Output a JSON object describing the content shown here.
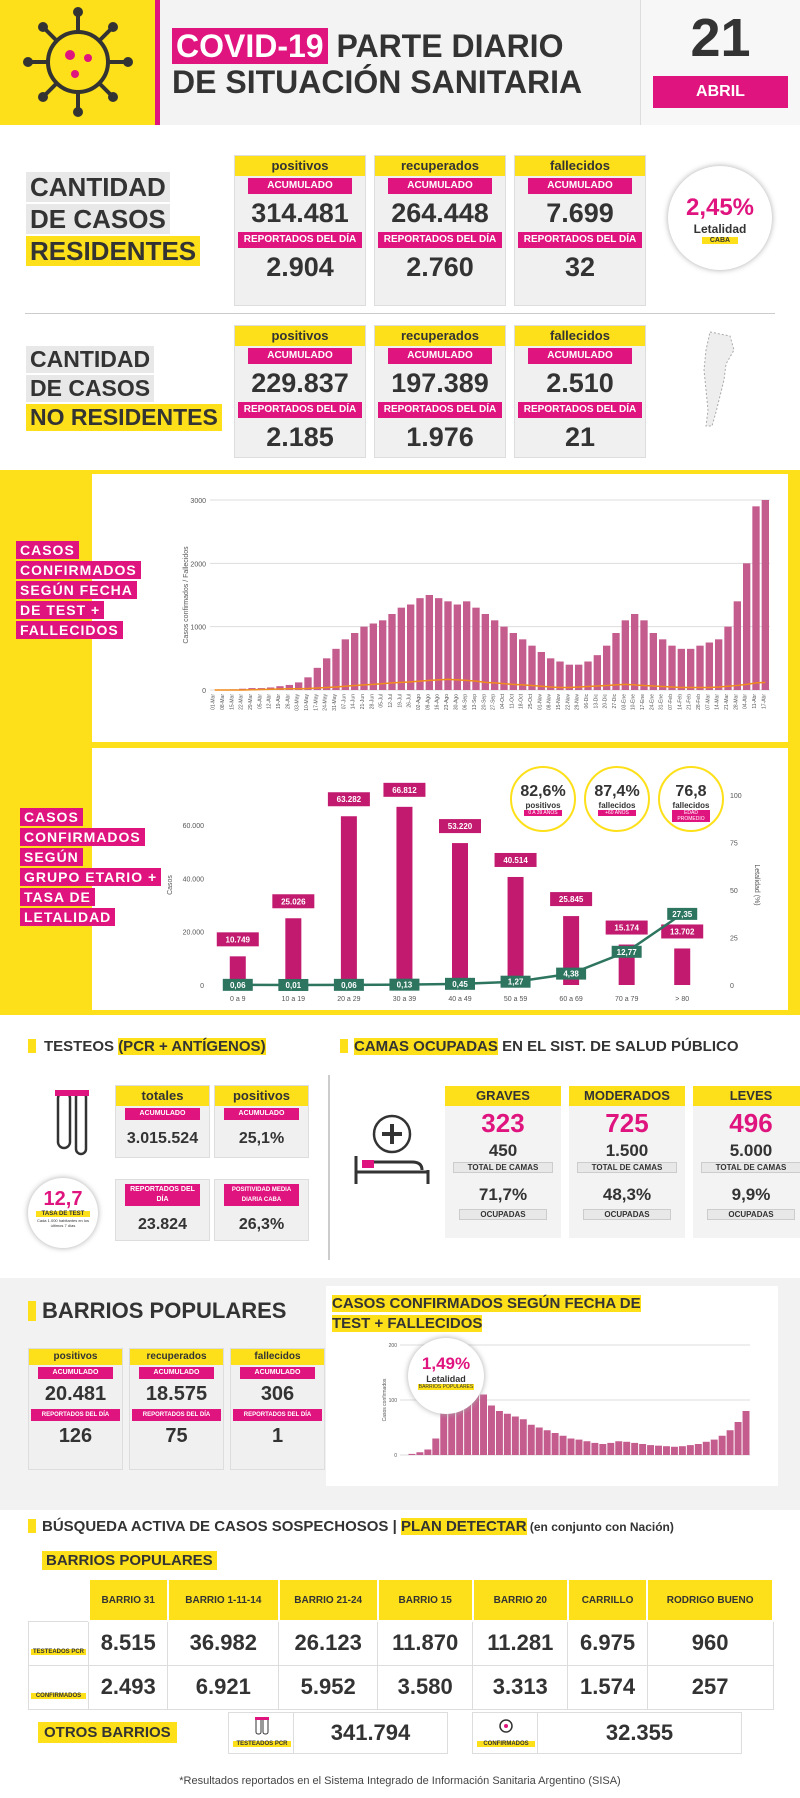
{
  "header": {
    "badge": "COVID-19",
    "title_1": "PARTE DIARIO",
    "title_2": "DE SITUACIÓN SANITARIA",
    "day": "21",
    "month": "ABRIL"
  },
  "common": {
    "acumulado": "ACUMULADO",
    "reportados": "REPORTADOS DEL DÍA"
  },
  "residentes": {
    "title_1": "CANTIDAD",
    "title_2": "DE CASOS",
    "title_3": "RESIDENTES",
    "cards": [
      {
        "label": "positivos",
        "acum": "314.481",
        "dia": "2.904"
      },
      {
        "label": "recuperados",
        "acum": "264.448",
        "dia": "2.760"
      },
      {
        "label": "fallecidos",
        "acum": "7.699",
        "dia": "32"
      }
    ],
    "letalidad": {
      "value": "2,45%",
      "label": "Letalidad",
      "sub": "CABA"
    }
  },
  "no_residentes": {
    "title_1": "CANTIDAD",
    "title_2": "DE CASOS",
    "title_3": "NO RESIDENTES",
    "cards": [
      {
        "label": "positivos",
        "acum": "229.837",
        "dia": "2.185"
      },
      {
        "label": "recuperados",
        "acum": "197.389",
        "dia": "1.976"
      },
      {
        "label": "fallecidos",
        "acum": "2.510",
        "dia": "21"
      }
    ]
  },
  "chart1": {
    "label_lines": [
      "CASOS",
      "CONFIRMADOS",
      "SEGÚN FECHA",
      "DE TEST +",
      "FALLECIDOS"
    ]
  },
  "chart2": {
    "label_lines": [
      "CASOS",
      "CONFIRMADOS",
      "SEGÚN",
      "GRUPO ETARIO +",
      "TASA DE",
      "LETALIDAD"
    ],
    "circles": [
      {
        "value": "82,6%",
        "label": "positivos",
        "sub": "0 A 39 AÑOS"
      },
      {
        "value": "87,4%",
        "label": "fallecidos",
        "sub": "+60 AÑOS"
      },
      {
        "value": "76,8",
        "label": "fallecidos",
        "sub": "EDAD PROMEDIO"
      }
    ]
  },
  "chart_data": [
    {
      "type": "bar",
      "title": "Casos confirmados según fecha de test + fallecidos",
      "ylabel": "Casos confirmados / Fallecidos",
      "ylim": [
        0,
        3000
      ],
      "yticks": [
        "0",
        "1000",
        "2000",
        "3000"
      ],
      "categories": [
        "01-Mar",
        "08-Mar",
        "15-Mar",
        "22-Mar",
        "29-Mar",
        "05-Abr",
        "12-Abr",
        "19-Abr",
        "26-Abr",
        "03-May",
        "10-May",
        "17-May",
        "24-May",
        "31-May",
        "07-Jun",
        "14-Jun",
        "21-Jun",
        "28-Jun",
        "05-Jul",
        "12-Jul",
        "19-Jul",
        "26-Jul",
        "02-Ago",
        "09-Ago",
        "16-Ago",
        "23-Ago",
        "30-Ago",
        "06-Sep",
        "13-Sep",
        "20-Sep",
        "27-Sep",
        "04-Oct",
        "11-Oct",
        "18-Oct",
        "25-Oct",
        "01-Nov",
        "08-Nov",
        "15-Nov",
        "22-Nov",
        "29-Nov",
        "06-Dic",
        "13-Dic",
        "20-Dic",
        "27-Dic",
        "03-Ene",
        "10-Ene",
        "17-Ene",
        "24-Ene",
        "31-Ene",
        "07-Feb",
        "14-Feb",
        "21-Feb",
        "28-Feb",
        "07-Mar",
        "14-Mar",
        "21-Mar",
        "28-Mar",
        "04-Abr",
        "11-Abr",
        "17-Abr"
      ],
      "series": [
        {
          "name": "Casos confirmados",
          "values": [
            0,
            0,
            10,
            20,
            30,
            30,
            40,
            60,
            80,
            120,
            200,
            350,
            500,
            650,
            800,
            900,
            1000,
            1050,
            1100,
            1200,
            1300,
            1350,
            1450,
            1500,
            1450,
            1400,
            1350,
            1400,
            1300,
            1200,
            1100,
            1000,
            900,
            800,
            700,
            600,
            500,
            450,
            400,
            400,
            450,
            550,
            700,
            900,
            1100,
            1200,
            1100,
            900,
            800,
            700,
            650,
            650,
            700,
            750,
            800,
            1000,
            1400,
            2000,
            2900,
            3000
          ]
        },
        {
          "name": "Fallecidos",
          "values": [
            0,
            0,
            0,
            0,
            1,
            2,
            3,
            4,
            5,
            5,
            6,
            8,
            10,
            12,
            15,
            18,
            20,
            22,
            25,
            28,
            30,
            32,
            35,
            38,
            40,
            42,
            40,
            38,
            35,
            30,
            28,
            25,
            22,
            20,
            18,
            15,
            12,
            10,
            10,
            12,
            14,
            16,
            18,
            20,
            22,
            20,
            18,
            16,
            14,
            12,
            10,
            10,
            10,
            10,
            12,
            15,
            18,
            22,
            28,
            30
          ]
        }
      ]
    },
    {
      "type": "bar",
      "title": "Casos confirmados según grupo etario + tasa de letalidad",
      "ylabel": "Casos",
      "y2label": "Letalidad (%)",
      "ylim": [
        0,
        75000
      ],
      "y2lim": [
        0,
        100
      ],
      "yticks": [
        "0",
        "20.000",
        "40.000",
        "60.000"
      ],
      "y2ticks": [
        "0",
        "25",
        "50",
        "75",
        "100"
      ],
      "categories": [
        "0 a 9",
        "10 a 19",
        "20 a 29",
        "30 a 39",
        "40 a 49",
        "50 a 59",
        "60 a 69",
        "70 a 79",
        "> 80"
      ],
      "values": [
        10749,
        25026,
        63282,
        66812,
        53220,
        40514,
        25845,
        15174,
        13702
      ],
      "labels": [
        "10.749",
        "25.026",
        "63.282",
        "66.812",
        "53.220",
        "40.514",
        "25.845",
        "15.174",
        "13.702"
      ],
      "letalidad": [
        0.06,
        0.01,
        0.06,
        0.13,
        0.45,
        1.27,
        4.38,
        12.77,
        27.35
      ],
      "letalidad_labels": [
        "0,06",
        "0,01",
        "0,06",
        "0,13",
        "0,45",
        "1,27",
        "4,38",
        "12,77",
        "27,35"
      ]
    },
    {
      "type": "bar",
      "title": "Casos confirmados según fecha de test + fallecidos (barrios populares)",
      "ylabel": "Casos confirmados",
      "ylim": [
        0,
        200
      ],
      "yticks": [
        "0",
        "100",
        "200"
      ],
      "values": [
        0,
        2,
        5,
        10,
        30,
        80,
        160,
        200,
        180,
        140,
        110,
        90,
        80,
        75,
        70,
        65,
        55,
        50,
        45,
        40,
        35,
        30,
        28,
        25,
        22,
        20,
        22,
        25,
        24,
        22,
        20,
        18,
        17,
        16,
        15,
        16,
        18,
        20,
        24,
        28,
        35,
        45,
        60,
        80
      ]
    }
  ],
  "testeos": {
    "title_1": "TESTEOS ",
    "title_2": "(PCR + ANTÍGENOS)",
    "totales": "totales",
    "positivos": "positivos",
    "acum_total": "3.015.524",
    "acum_pos": "25,1%",
    "rep_label": "REPORTADOS DEL DÍA",
    "rep_value": "23.824",
    "posit_label": "POSITIVIDAD MEDIA DIARIA CABA",
    "posit_value": "26,3%",
    "tasa_value": "12,7",
    "tasa_label": "TASA DE TEST",
    "tasa_sub": "Cada 1.000 habitantes en los últimos 7 días"
  },
  "camas": {
    "title_1": "CAMAS OCUPADAS",
    "title_2": " EN EL SIST. DE SALUD PÚBLICO",
    "total_label": "TOTAL DE CAMAS",
    "ocup_label": "OCUPADAS",
    "cols": [
      {
        "label": "GRAVES",
        "value": "323",
        "total": "450",
        "pct": "71,7%"
      },
      {
        "label": "MODERADOS",
        "value": "725",
        "total": "1.500",
        "pct": "48,3%"
      },
      {
        "label": "LEVES",
        "value": "496",
        "total": "5.000",
        "pct": "9,9%"
      }
    ]
  },
  "barrios": {
    "title": "BARRIOS POPULARES",
    "chart_title_1": "CASOS CONFIRMADOS SEGÚN FECHA DE",
    "chart_title_2": "TEST + FALLECIDOS",
    "cards": [
      {
        "label": "positivos",
        "acum": "20.481",
        "dia": "126"
      },
      {
        "label": "recuperados",
        "acum": "18.575",
        "dia": "75"
      },
      {
        "label": "fallecidos",
        "acum": "306",
        "dia": "1"
      }
    ],
    "letalidad": {
      "value": "1,49%",
      "label": "Letalidad",
      "sub": "BARRIOS POPULARES"
    }
  },
  "busqueda": {
    "title": "BÚSQUEDA ACTIVA DE CASOS SOSPECHOSOS | ",
    "plan": "PLAN DETECTAR",
    "note": " (en conjunto con Nación)",
    "sub": "BARRIOS POPULARES",
    "row1_label": "TESTEADOS PCR",
    "row2_label": "CONFIRMADOS",
    "cols": [
      {
        "name": "BARRIO 31",
        "t": "8.515",
        "c": "2.493"
      },
      {
        "name": "BARRIO 1-11-14",
        "t": "36.982",
        "c": "6.921"
      },
      {
        "name": "BARRIO 21-24",
        "t": "26.123",
        "c": "5.952"
      },
      {
        "name": "BARRIO 15",
        "t": "11.870",
        "c": "3.580"
      },
      {
        "name": "BARRIO 20",
        "t": "11.281",
        "c": "3.313"
      },
      {
        "name": "CARRILLO",
        "t": "6.975",
        "c": "1.574"
      },
      {
        "name": "RODRIGO BUENO",
        "t": "960",
        "c": "257"
      }
    ]
  },
  "otros": {
    "title": "OTROS BARRIOS",
    "test_label": "TESTEADOS PCR",
    "test_value": "341.794",
    "conf_label": "CONFIRMADOS",
    "conf_value": "32.355"
  },
  "footer": {
    "text": "*Resultados reportados en el Sistema Integrado de Información Sanitaria Argentino (SISA)"
  }
}
